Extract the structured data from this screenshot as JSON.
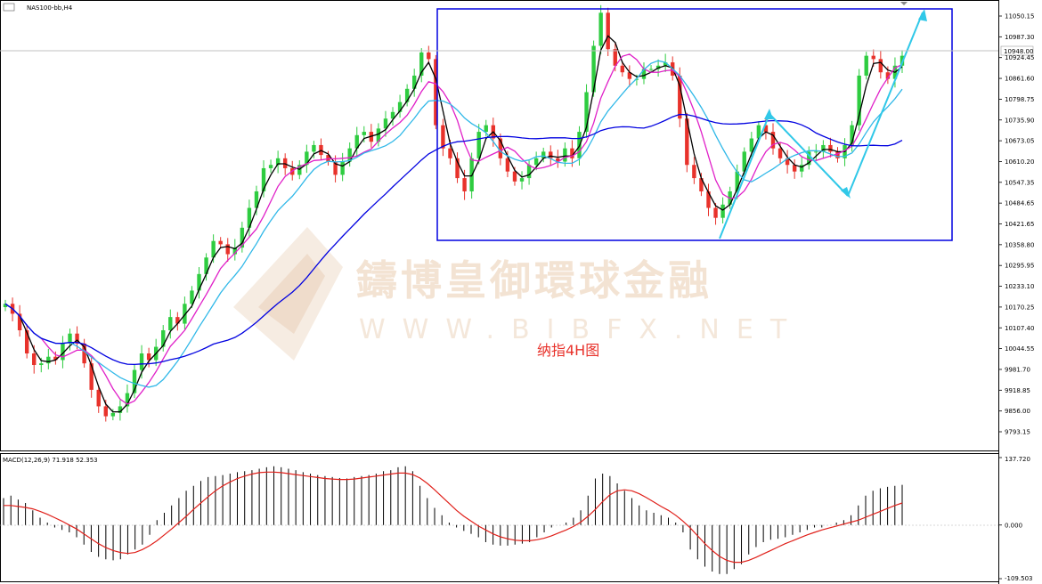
{
  "chart_data": [
    {
      "type": "candlestick",
      "symbol_title": "NAS100-bb,H4",
      "annotation": "纳指4H图",
      "current_price_label": "10948.00",
      "watermark": {
        "chinese": "鑄博皇御環球金融",
        "english": "WWW.BIBFX.NET"
      },
      "y_tick_labels": [
        "11050.15",
        "10987.30",
        "10924.45",
        "10861.60",
        "10798.75",
        "10735.90",
        "10673.05",
        "10610.20",
        "10547.35",
        "10484.65",
        "10421.65",
        "10358.80",
        "10295.95",
        "10233.10",
        "10170.25",
        "10107.40",
        "10044.55",
        "9981.70",
        "9918.85",
        "9856.00",
        "9793.15"
      ],
      "ylim": [
        9760,
        11070
      ],
      "colors": {
        "bull": "#2ecc40",
        "bear": "#e8322b",
        "ma_fast": "#000000",
        "ma_mid": "#e020c8",
        "ma_slow": "#30b8e8",
        "ma_long": "#0000e0",
        "box": "#0000e0",
        "trend_arrows": "#30c8e8"
      },
      "series": [
        {
          "name": "price_path",
          "values": [
            10180,
            10150,
            10100,
            10030,
            9995,
            10000,
            10020,
            10010,
            10060,
            10090,
            10060,
            10000,
            9920,
            9870,
            9840,
            9850,
            9870,
            9910,
            9980,
            10030,
            10010,
            10050,
            10100,
            10140,
            10120,
            10180,
            10220,
            10270,
            10320,
            10370,
            10360,
            10330,
            10350,
            10410,
            10470,
            10520,
            10590,
            10600,
            10620,
            10590,
            10570,
            10600,
            10640,
            10660,
            10630,
            10610,
            10570,
            10610,
            10650,
            10690,
            10700,
            10670,
            10710,
            10740,
            10760,
            10790,
            10830,
            10870,
            10940,
            10920,
            10720,
            10650,
            10620,
            10560,
            10520,
            10620,
            10700,
            10720,
            10680,
            10620,
            10580,
            10550,
            10560,
            10600,
            10620,
            10640,
            10620,
            10610,
            10650,
            10620,
            10700,
            10820,
            10960,
            11060,
            10950,
            10900,
            10880,
            10860,
            10860,
            10890,
            10890,
            10900,
            10910,
            10870,
            10740,
            10600,
            10560,
            10520,
            10470,
            10440,
            10480,
            10520,
            10580,
            10640,
            10680,
            10720,
            10700,
            10650,
            10620,
            10600,
            10580,
            10600,
            10640,
            10640,
            10660,
            10640,
            10620,
            10660,
            10720,
            10870,
            10930,
            10920,
            10880,
            10860,
            10900,
            10930
          ]
        }
      ]
    },
    {
      "type": "bar",
      "title": "MACD(12,26,9) 71.918 52.353",
      "y_tick_labels": [
        "137.720",
        "0.000",
        "-109.503"
      ],
      "ylim": [
        -109.503,
        137.72
      ],
      "series": [
        {
          "name": "histogram",
          "values": [
            55,
            60,
            52,
            45,
            30,
            15,
            5,
            -5,
            -10,
            -15,
            -25,
            -40,
            -55,
            -65,
            -70,
            -72,
            -70,
            -60,
            -50,
            -40,
            -20,
            10,
            25,
            40,
            55,
            70,
            80,
            90,
            98,
            100,
            102,
            105,
            108,
            110,
            112,
            115,
            118,
            120,
            118,
            115,
            112,
            108,
            105,
            102,
            100,
            98,
            96,
            95,
            98,
            100,
            102,
            105,
            110,
            112,
            118,
            120,
            110,
            80,
            55,
            35,
            20,
            5,
            -5,
            -12,
            -18,
            -25,
            -35,
            -40,
            -42,
            -42,
            -40,
            -38,
            -35,
            -25,
            -15,
            -5,
            0,
            5,
            15,
            30,
            60,
            95,
            105,
            100,
            85,
            70,
            55,
            40,
            30,
            25,
            20,
            15,
            5,
            -15,
            -50,
            -70,
            -85,
            -95,
            -100,
            -100,
            -90,
            -80,
            -60,
            -45,
            -35,
            -30,
            -28,
            -25,
            -20,
            -15,
            -10,
            -5,
            -5,
            0,
            5,
            10,
            20,
            40,
            60,
            70,
            75,
            78,
            80,
            82
          ]
        },
        {
          "name": "signal",
          "values": [
            40,
            40,
            38,
            36,
            33,
            28,
            22,
            15,
            8,
            0,
            -8,
            -18,
            -28,
            -38,
            -46,
            -52,
            -56,
            -58,
            -56,
            -50,
            -42,
            -32,
            -20,
            -8,
            5,
            18,
            32,
            45,
            58,
            70,
            80,
            88,
            95,
            100,
            104,
            107,
            108,
            108,
            107,
            105,
            103,
            101,
            99,
            97,
            95,
            94,
            93,
            93,
            94,
            96,
            98,
            100,
            102,
            104,
            106,
            106,
            103,
            96,
            85,
            72,
            58,
            44,
            30,
            18,
            8,
            -2,
            -10,
            -18,
            -24,
            -28,
            -31,
            -32,
            -32,
            -30,
            -27,
            -22,
            -16,
            -10,
            -3,
            6,
            18,
            32,
            48,
            62,
            70,
            72,
            70,
            64,
            56,
            47,
            38,
            30,
            20,
            8,
            -6,
            -22,
            -38,
            -52,
            -64,
            -72,
            -76,
            -76,
            -72,
            -66,
            -59,
            -52,
            -45,
            -38,
            -32,
            -26,
            -20,
            -15,
            -10,
            -6,
            -2,
            2,
            6,
            10,
            16,
            22,
            28,
            34,
            40,
            45
          ]
        }
      ]
    }
  ]
}
